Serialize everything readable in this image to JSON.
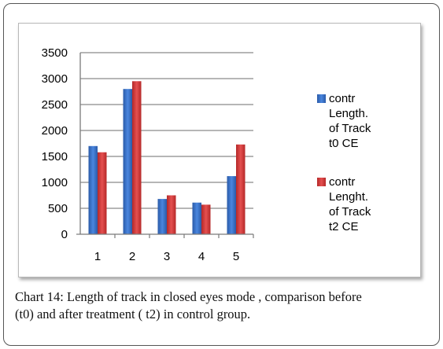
{
  "chart_data": {
    "type": "bar",
    "categories": [
      "1",
      "2",
      "3",
      "4",
      "5"
    ],
    "series": [
      {
        "name": "contr Length. of Track t0 CE",
        "legend_lines": [
          "contr",
          "Length.",
          "of Track",
          "t0 CE"
        ],
        "color": "#3a6fc4",
        "values": [
          1700,
          2800,
          680,
          610,
          1120
        ]
      },
      {
        "name": "contr Lenght. of Track t2 CE",
        "legend_lines": [
          "contr",
          "Lenght.",
          "of Track",
          "t2 CE"
        ],
        "color": "#d33a3a",
        "values": [
          1580,
          2950,
          750,
          570,
          1730
        ]
      }
    ],
    "ylim": [
      0,
      3500
    ],
    "yticks": [
      "0",
      "500",
      "1000",
      "1500",
      "2000",
      "2500",
      "3000",
      "3500"
    ],
    "grid": true,
    "legend": "right"
  },
  "caption": {
    "line1": "Chart 14: Length of track in closed eyes mode , comparison before",
    "line2": "(t0) and after treatment ( t2) in control group."
  }
}
